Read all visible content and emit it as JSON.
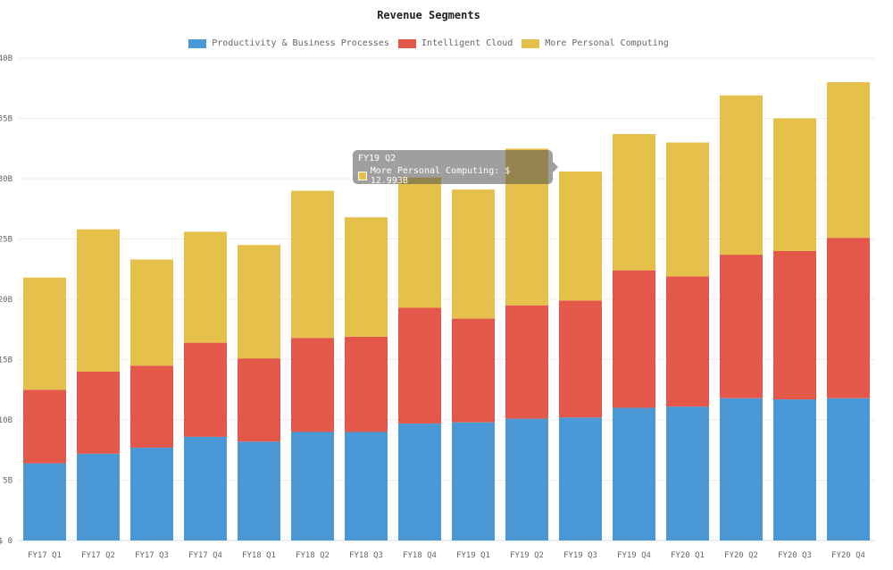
{
  "chart_data": {
    "type": "bar",
    "stacked": true,
    "title": "Revenue Segments",
    "categories": [
      "FY17 Q1",
      "FY17 Q2",
      "FY17 Q3",
      "FY17 Q4",
      "FY18 Q1",
      "FY18 Q2",
      "FY18 Q3",
      "FY18 Q4",
      "FY19 Q1",
      "FY19 Q2",
      "FY19 Q3",
      "FY19 Q4",
      "FY20 Q1",
      "FY20 Q2",
      "FY20 Q3",
      "FY20 Q4"
    ],
    "series": [
      {
        "name": "Productivity & Business Processes",
        "color": "#4a98d6",
        "values": [
          6.4,
          7.2,
          7.7,
          8.6,
          8.2,
          9.0,
          9.0,
          9.7,
          9.8,
          10.1,
          10.2,
          11.0,
          11.1,
          11.8,
          11.7,
          11.8
        ]
      },
      {
        "name": "Intelligent Cloud",
        "color": "#e35849",
        "values": [
          6.1,
          6.8,
          6.8,
          7.8,
          6.9,
          7.8,
          7.9,
          9.6,
          8.6,
          9.4,
          9.7,
          11.4,
          10.8,
          11.9,
          12.3,
          13.3
        ]
      },
      {
        "name": "More Personal Computing",
        "color": "#e5c04b",
        "values": [
          9.3,
          11.8,
          8.8,
          9.2,
          9.4,
          12.2,
          9.9,
          10.8,
          10.7,
          12.993,
          10.7,
          11.3,
          11.1,
          13.2,
          11.0,
          12.9
        ]
      }
    ],
    "y_ticks": [
      "$ 0",
      "$ 5B",
      "$ 10B",
      "$ 15B",
      "$ 20B",
      "$ 25B",
      "$ 30B",
      "$ 35B",
      "$ 40B"
    ],
    "ylim": [
      0,
      40
    ],
    "grid": true,
    "legend_position": "top"
  },
  "tooltip": {
    "title": "FY19 Q2",
    "label": "More Personal Computing: $ 12.993B",
    "color": "#e5c04b"
  }
}
